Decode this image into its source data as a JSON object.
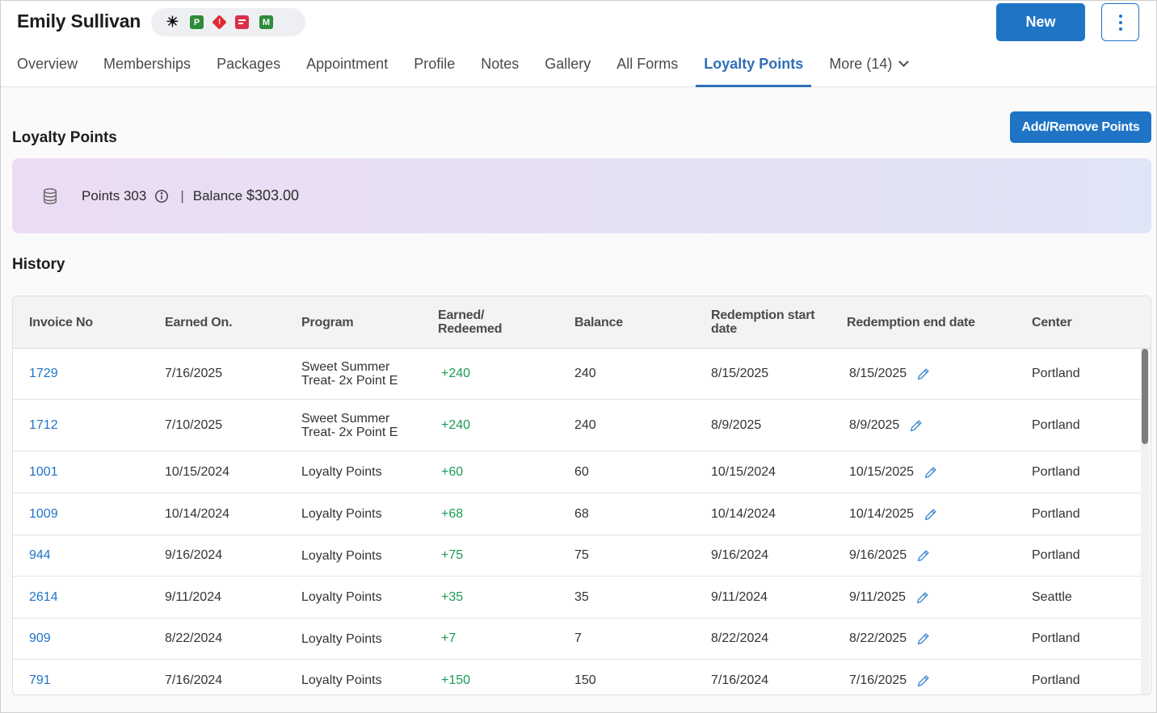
{
  "client": {
    "name": "Emily Sullivan",
    "tags": [
      {
        "name": "sun-icon",
        "label": ""
      },
      {
        "name": "tag-p-icon",
        "label": "P"
      },
      {
        "name": "alert-icon",
        "label": "!"
      },
      {
        "name": "chat-icon",
        "label": ""
      },
      {
        "name": "tag-m-icon",
        "label": "M"
      }
    ]
  },
  "header": {
    "new_label": "New",
    "more_icon": "kebab-icon"
  },
  "tabs": [
    {
      "label": "Overview"
    },
    {
      "label": "Memberships"
    },
    {
      "label": "Packages"
    },
    {
      "label": "Appointment"
    },
    {
      "label": "Profile"
    },
    {
      "label": "Notes"
    },
    {
      "label": "Gallery"
    },
    {
      "label": "All Forms"
    },
    {
      "label": "Loyalty Points",
      "active": true
    },
    {
      "label": "More (14)"
    }
  ],
  "loyalty": {
    "title": "Loyalty Points",
    "add_remove_label": "Add/Remove Points",
    "points_label": "Points 303",
    "separator": "|",
    "balance_label": "Balance",
    "balance_amount": "$303.00"
  },
  "history": {
    "title": "History",
    "columns": [
      "Invoice No",
      "Earned On.",
      "Program",
      "Earned/ Redeemed",
      "Balance",
      "Redemption start date",
      "Redemption end date",
      "Center"
    ],
    "rows": [
      {
        "invoice": "1729",
        "earned_on": "7/16/2025",
        "program": "Sweet Summer Treat- 2x Point E",
        "earned": "+240",
        "balance": "240",
        "start": "8/15/2025",
        "end": "8/15/2025",
        "center": "Portland"
      },
      {
        "invoice": "1712",
        "earned_on": "7/10/2025",
        "program": "Sweet Summer Treat- 2x Point E",
        "earned": "+240",
        "balance": "240",
        "start": "8/9/2025",
        "end": "8/9/2025",
        "center": "Portland"
      },
      {
        "invoice": "1001",
        "earned_on": "10/15/2024",
        "program": "Loyalty Points",
        "earned": "+60",
        "balance": "60",
        "start": "10/15/2024",
        "end": "10/15/2025",
        "center": "Portland"
      },
      {
        "invoice": "1009",
        "earned_on": "10/14/2024",
        "program": "Loyalty Points",
        "earned": "+68",
        "balance": "68",
        "start": "10/14/2024",
        "end": "10/14/2025",
        "center": "Portland"
      },
      {
        "invoice": "944",
        "earned_on": "9/16/2024",
        "program": "Loyalty Points",
        "earned": "+75",
        "balance": "75",
        "start": "9/16/2024",
        "end": "9/16/2025",
        "center": "Portland"
      },
      {
        "invoice": "2614",
        "earned_on": "9/11/2024",
        "program": "Loyalty Points",
        "earned": "+35",
        "balance": "35",
        "start": "9/11/2024",
        "end": "9/11/2025",
        "center": "Seattle"
      },
      {
        "invoice": "909",
        "earned_on": "8/22/2024",
        "program": "Loyalty Points",
        "earned": "+7",
        "balance": "7",
        "start": "8/22/2024",
        "end": "8/22/2025",
        "center": "Portland"
      },
      {
        "invoice": "791",
        "earned_on": "7/16/2024",
        "program": "Loyalty Points",
        "earned": "+150",
        "balance": "150",
        "start": "7/16/2024",
        "end": "7/16/2025",
        "center": "Portland"
      }
    ]
  },
  "colors": {
    "accent": "#1f74c6",
    "active_tab": "#2f6fb8",
    "earned": "#1a9a55"
  }
}
